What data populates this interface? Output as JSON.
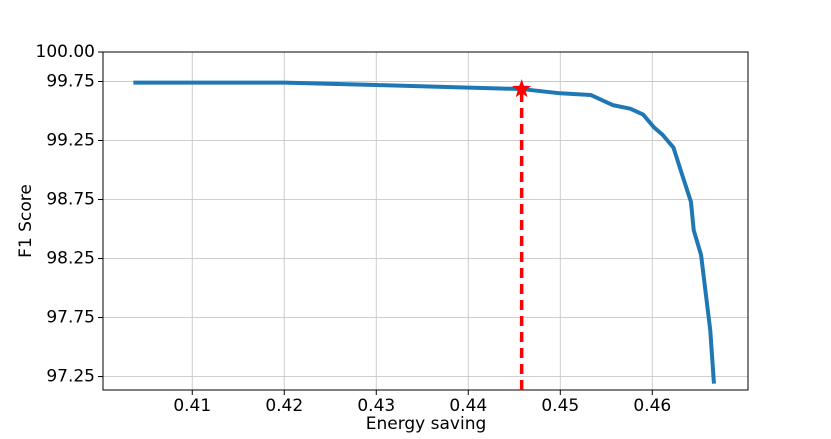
{
  "chart_data": {
    "type": "line",
    "x_label": "Energy saving",
    "y_label": "F1 Score",
    "x": [
      0.4036,
      0.42,
      0.43,
      0.4458,
      0.45,
      0.4533,
      0.4557,
      0.4576,
      0.459,
      0.4602,
      0.4611,
      0.4623,
      0.4632,
      0.4642,
      0.4645,
      0.4653,
      0.4663,
      0.4667
    ],
    "series": [
      {
        "color": "#1f77b4",
        "values": [
          99.74,
          99.74,
          99.72,
          99.686,
          99.65,
          99.636,
          99.55,
          99.52,
          99.47,
          99.36,
          99.3,
          99.19,
          98.97,
          98.73,
          98.49,
          98.28,
          97.64,
          97.19
        ]
      }
    ],
    "highlight": {
      "x": 0.4458,
      "y": 99.686,
      "color": "#ff0000"
    },
    "xlim": [
      0.4003,
      0.4704
    ],
    "ylim": [
      97.136,
      100
    ],
    "xticks": [
      0.41,
      0.42,
      0.43,
      0.44,
      0.45,
      0.46
    ],
    "yticks": [
      97.25,
      97.75,
      98.25,
      98.75,
      99.25,
      99.75,
      {
        "value": 100,
        "label": "100.00"
      }
    ],
    "grid": true
  }
}
